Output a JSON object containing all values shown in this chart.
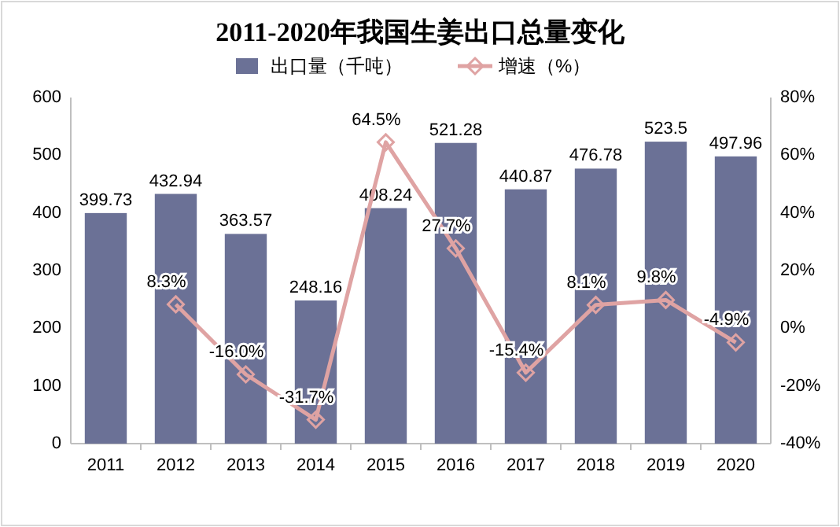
{
  "chart_data": {
    "type": "bar",
    "title": "2011-2020年我国生姜出口总量变化",
    "categories": [
      "2011",
      "2012",
      "2013",
      "2014",
      "2015",
      "2016",
      "2017",
      "2018",
      "2019",
      "2020"
    ],
    "series": [
      {
        "name": "出口量（千吨）",
        "color": "#6b7196",
        "values": [
          399.73,
          432.94,
          363.57,
          248.16,
          408.24,
          521.28,
          440.87,
          476.78,
          523.5,
          497.96
        ],
        "data_labels": true
      },
      {
        "name": "增速（%）",
        "type": "line",
        "axis": "y2",
        "color": "#dfa3a3",
        "marker": "diamond",
        "values": [
          null,
          8.3,
          -16.0,
          -31.7,
          64.5,
          27.7,
          -15.4,
          8.1,
          9.8,
          -4.9
        ],
        "value_labels": [
          null,
          "8.3%",
          "-16.0%",
          "-31.7%",
          "64.5%",
          "27.7%",
          "-15.4%",
          "8.1%",
          "9.8%",
          "-4.9%"
        ]
      }
    ],
    "ylim": [
      0,
      600
    ],
    "yticks": [
      0,
      100,
      200,
      300,
      400,
      500,
      600
    ],
    "y2lim": [
      -40,
      80
    ],
    "y2ticks": [
      {
        "value": -40,
        "label": "-40%"
      },
      {
        "value": -20,
        "label": "-20%"
      },
      {
        "value": 0,
        "label": "0%"
      },
      {
        "value": 20,
        "label": "20%"
      },
      {
        "value": 40,
        "label": "40%"
      },
      {
        "value": 60,
        "label": "60%"
      },
      {
        "value": 80,
        "label": "80%"
      }
    ],
    "legend": "top"
  }
}
